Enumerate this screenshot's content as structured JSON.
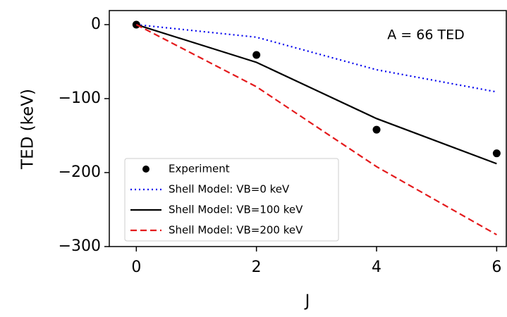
{
  "chart_data": {
    "type": "line",
    "x_label": "J",
    "y_label": "TED (keV)",
    "annotation": "A = 66 TED",
    "x": [
      0,
      2,
      4,
      6
    ],
    "series": [
      {
        "name": "Experiment",
        "color": "#000000",
        "style": "markers",
        "values": [
          0,
          -41,
          -142,
          -174
        ]
      },
      {
        "name": "Shell Model: VB=0 keV",
        "color": "#0000ee",
        "style": "dotted",
        "values": [
          0,
          -17,
          -61,
          -91
        ]
      },
      {
        "name": "Shell Model: VB=100 keV",
        "color": "#000000",
        "style": "solid",
        "values": [
          0,
          -51,
          -127,
          -188
        ]
      },
      {
        "name": "Shell Model: VB=200 keV",
        "color": "#e41a1c",
        "style": "dashed",
        "values": [
          0,
          -84,
          -192,
          -284
        ]
      }
    ],
    "xlim": [
      -0.45,
      6.16
    ],
    "ylim": [
      -300,
      19
    ],
    "xticks": [
      0,
      2,
      4,
      6
    ],
    "yticks": [
      0,
      {
        "value": -100,
        "label": "−100"
      },
      {
        "value": -200,
        "label": "−200"
      },
      {
        "value": -300,
        "label": "−300"
      }
    ],
    "grid": false,
    "legend_position": "lower left"
  }
}
